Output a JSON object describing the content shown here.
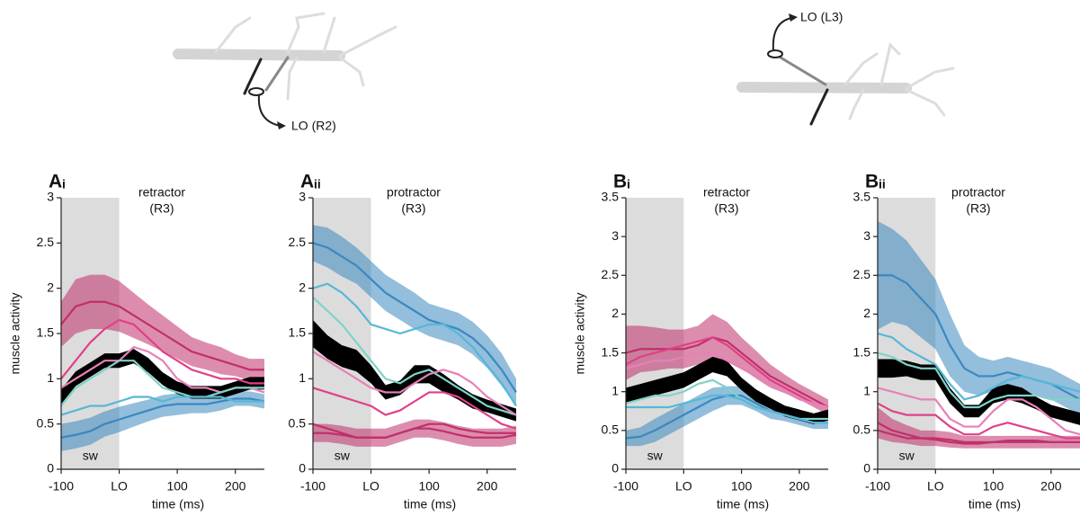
{
  "diagrams": [
    {
      "label": "LO (R2)"
    },
    {
      "label": "LO (L3)"
    }
  ],
  "chart_data": [
    {
      "type": "line",
      "panel": "A",
      "panel_sub": "i",
      "annotation": [
        "retractor",
        "(R3)"
      ],
      "shade_label": "sw",
      "ylabel": "muscle activity",
      "xlabel": "time (ms)",
      "x": [
        -100,
        -75,
        -50,
        -25,
        0,
        25,
        50,
        75,
        100,
        125,
        150,
        175,
        200,
        225,
        250
      ],
      "xlim": [
        -100,
        250
      ],
      "xticks": [
        -100,
        {
          "value": 0,
          "label": "LO"
        },
        100,
        200
      ],
      "shade": [
        -100,
        0
      ],
      "ylim": [
        0,
        3
      ],
      "yticks": [
        0,
        0.5,
        1,
        1.5,
        2,
        2.5,
        3
      ],
      "series": [
        {
          "color": "#c0306a",
          "values": [
            1.6,
            1.8,
            1.85,
            1.85,
            1.8,
            1.7,
            1.6,
            1.5,
            1.4,
            1.3,
            1.25,
            1.2,
            1.15,
            1.1,
            1.1
          ],
          "error": [
            0.25,
            0.3,
            0.3,
            0.3,
            0.28,
            0.25,
            0.22,
            0.2,
            0.18,
            0.16,
            0.15,
            0.15,
            0.12,
            0.12,
            0.12
          ]
        },
        {
          "color": "#3a88c0",
          "values": [
            0.35,
            0.38,
            0.42,
            0.5,
            0.55,
            0.6,
            0.65,
            0.7,
            0.72,
            0.72,
            0.72,
            0.75,
            0.78,
            0.78,
            0.75
          ],
          "error": [
            0.15,
            0.15,
            0.15,
            0.14,
            0.14,
            0.13,
            0.12,
            0.12,
            0.12,
            0.1,
            0.1,
            0.1,
            0.08,
            0.08,
            0.08
          ]
        },
        {
          "color": "#000000",
          "values": [
            0.8,
            1.0,
            1.1,
            1.2,
            1.2,
            1.25,
            1.15,
            1.0,
            0.9,
            0.85,
            0.85,
            0.85,
            0.9,
            0.95,
            0.95
          ],
          "error": [
            0.08,
            0.08,
            0.08,
            0.08,
            0.08,
            0.08,
            0.08,
            0.07,
            0.07,
            0.07,
            0.07,
            0.07,
            0.07,
            0.07,
            0.07
          ]
        },
        {
          "color": "#e0408a",
          "values": [
            1.0,
            1.2,
            1.4,
            1.55,
            1.65,
            1.6,
            1.45,
            1.3,
            1.2,
            1.1,
            1.05,
            1.0,
            1.0,
            0.95,
            0.95
          ]
        },
        {
          "color": "#e880b8",
          "values": [
            0.9,
            1.0,
            1.1,
            1.2,
            1.2,
            1.35,
            1.3,
            1.2,
            1.0,
            0.9,
            0.9,
            0.85,
            0.9,
            0.9,
            0.85
          ]
        },
        {
          "color": "#7fd3c8",
          "values": [
            0.7,
            0.9,
            1.0,
            1.1,
            1.2,
            1.2,
            1.05,
            0.9,
            0.85,
            0.8,
            0.8,
            0.85,
            0.9,
            0.9,
            0.9
          ]
        },
        {
          "color": "#55b8d8",
          "values": [
            0.6,
            0.65,
            0.7,
            0.7,
            0.75,
            0.8,
            0.8,
            0.75,
            0.8,
            0.8,
            0.8,
            0.8,
            0.75,
            0.75,
            0.75
          ]
        }
      ]
    },
    {
      "type": "line",
      "panel": "A",
      "panel_sub": "ii",
      "annotation": [
        "protractor",
        "(R3)"
      ],
      "shade_label": "sw",
      "xlabel": "time (ms)",
      "x": [
        -100,
        -75,
        -50,
        -25,
        0,
        25,
        50,
        75,
        100,
        125,
        150,
        175,
        200,
        225,
        250
      ],
      "xlim": [
        -100,
        250
      ],
      "xticks": [
        -100,
        {
          "value": 0,
          "label": "LO"
        },
        100,
        200
      ],
      "shade": [
        -100,
        0
      ],
      "ylim": [
        0,
        3
      ],
      "yticks": [
        0,
        0.5,
        1,
        1.5,
        2,
        2.5,
        3
      ],
      "series": [
        {
          "color": "#3a88c0",
          "values": [
            2.5,
            2.45,
            2.35,
            2.25,
            2.1,
            1.95,
            1.85,
            1.75,
            1.65,
            1.6,
            1.55,
            1.45,
            1.3,
            1.1,
            0.85
          ],
          "error": [
            0.2,
            0.22,
            0.22,
            0.2,
            0.2,
            0.2,
            0.2,
            0.2,
            0.18,
            0.18,
            0.18,
            0.18,
            0.18,
            0.18,
            0.15
          ]
        },
        {
          "color": "#c0306a",
          "values": [
            0.4,
            0.4,
            0.38,
            0.35,
            0.35,
            0.35,
            0.4,
            0.45,
            0.45,
            0.42,
            0.38,
            0.35,
            0.35,
            0.35,
            0.38
          ],
          "error": [
            0.1,
            0.1,
            0.1,
            0.1,
            0.1,
            0.1,
            0.1,
            0.1,
            0.1,
            0.1,
            0.1,
            0.1,
            0.1,
            0.1,
            0.1
          ]
        },
        {
          "color": "#000000",
          "values": [
            1.5,
            1.35,
            1.25,
            1.2,
            1.05,
            0.85,
            0.9,
            1.05,
            1.05,
            0.95,
            0.85,
            0.75,
            0.7,
            0.65,
            0.6
          ],
          "error": [
            0.15,
            0.13,
            0.12,
            0.12,
            0.1,
            0.08,
            0.08,
            0.1,
            0.1,
            0.1,
            0.08,
            0.08,
            0.07,
            0.07,
            0.07
          ]
        },
        {
          "color": "#55b8d8",
          "values": [
            2.0,
            2.05,
            1.95,
            1.8,
            1.6,
            1.55,
            1.5,
            1.55,
            1.6,
            1.6,
            1.5,
            1.35,
            1.15,
            0.95,
            0.7
          ]
        },
        {
          "color": "#7fd3c8",
          "values": [
            1.9,
            1.75,
            1.6,
            1.4,
            1.2,
            1.0,
            0.95,
            1.05,
            1.1,
            1.0,
            0.9,
            0.8,
            0.7,
            0.65,
            0.6
          ]
        },
        {
          "color": "#e880b8",
          "values": [
            1.3,
            1.2,
            1.1,
            1.0,
            0.9,
            0.85,
            0.85,
            0.95,
            1.05,
            1.1,
            1.05,
            0.95,
            0.8,
            0.7,
            0.6
          ]
        },
        {
          "color": "#e0408a",
          "values": [
            0.9,
            0.85,
            0.8,
            0.75,
            0.7,
            0.6,
            0.65,
            0.75,
            0.85,
            0.85,
            0.8,
            0.7,
            0.6,
            0.5,
            0.45
          ]
        },
        {
          "color": "#c0306a",
          "values": [
            0.5,
            0.45,
            0.4,
            0.35,
            0.35,
            0.35,
            0.4,
            0.45,
            0.5,
            0.5,
            0.45,
            0.42,
            0.4,
            0.4,
            0.4
          ]
        }
      ]
    },
    {
      "type": "line",
      "panel": "B",
      "panel_sub": "i",
      "annotation": [
        "retractor",
        "(R3)"
      ],
      "shade_label": "sw",
      "ylabel": "muscle activity",
      "xlabel": "time (ms)",
      "x": [
        -100,
        -75,
        -50,
        -25,
        0,
        25,
        50,
        75,
        100,
        125,
        150,
        175,
        200,
        225,
        250
      ],
      "xlim": [
        -100,
        250
      ],
      "xticks": [
        -100,
        {
          "value": 0,
          "label": "LO"
        },
        100,
        200
      ],
      "shade": [
        -100,
        0
      ],
      "ylim": [
        0,
        3.5
      ],
      "yticks": [
        0,
        0.5,
        1,
        1.5,
        2,
        2.5,
        3,
        3.5
      ],
      "series": [
        {
          "color": "#c0306a",
          "values": [
            1.5,
            1.55,
            1.55,
            1.55,
            1.55,
            1.6,
            1.7,
            1.65,
            1.5,
            1.35,
            1.2,
            1.1,
            1.0,
            0.9,
            0.8
          ],
          "error": [
            0.35,
            0.3,
            0.28,
            0.25,
            0.25,
            0.25,
            0.3,
            0.25,
            0.2,
            0.18,
            0.15,
            0.12,
            0.1,
            0.1,
            0.1
          ]
        },
        {
          "color": "#3a88c0",
          "values": [
            0.4,
            0.42,
            0.5,
            0.6,
            0.7,
            0.8,
            0.9,
            0.95,
            0.95,
            0.85,
            0.75,
            0.7,
            0.65,
            0.6,
            0.6
          ],
          "error": [
            0.1,
            0.12,
            0.15,
            0.15,
            0.15,
            0.15,
            0.15,
            0.12,
            0.12,
            0.1,
            0.1,
            0.08,
            0.08,
            0.08,
            0.08
          ]
        },
        {
          "color": "#000000",
          "values": [
            0.95,
            1.0,
            1.05,
            1.1,
            1.15,
            1.25,
            1.35,
            1.3,
            1.1,
            0.95,
            0.85,
            0.75,
            0.7,
            0.65,
            0.7
          ],
          "error": [
            0.1,
            0.1,
            0.1,
            0.1,
            0.1,
            0.1,
            0.1,
            0.1,
            0.08,
            0.08,
            0.07,
            0.07,
            0.07,
            0.07,
            0.07
          ]
        },
        {
          "color": "#e0408a",
          "values": [
            1.35,
            1.45,
            1.5,
            1.55,
            1.6,
            1.65,
            1.7,
            1.6,
            1.45,
            1.3,
            1.15,
            1.05,
            0.95,
            0.85,
            0.8
          ]
        },
        {
          "color": "#e880b8",
          "values": [
            1.3,
            1.35,
            1.4,
            1.4,
            1.45,
            1.5,
            1.5,
            1.4,
            1.3,
            1.2,
            1.1,
            1.0,
            0.9,
            0.85,
            0.8
          ]
        },
        {
          "color": "#7fd3c8",
          "values": [
            0.85,
            0.9,
            0.95,
            0.95,
            1.0,
            1.1,
            1.15,
            1.05,
            0.9,
            0.8,
            0.75,
            0.7,
            0.65,
            0.65,
            0.65
          ]
        },
        {
          "color": "#55b8d8",
          "values": [
            0.8,
            0.8,
            0.8,
            0.8,
            0.85,
            0.9,
            0.95,
            0.95,
            0.9,
            0.8,
            0.75,
            0.7,
            0.65,
            0.6,
            0.6
          ]
        }
      ]
    },
    {
      "type": "line",
      "panel": "B",
      "panel_sub": "ii",
      "annotation": [
        "protractor",
        "(R3)"
      ],
      "shade_label": "sw",
      "xlabel": "time (ms)",
      "x": [
        -100,
        -75,
        -50,
        -25,
        0,
        25,
        50,
        75,
        100,
        125,
        150,
        175,
        200,
        225,
        250
      ],
      "xlim": [
        -100,
        250
      ],
      "xticks": [
        -100,
        {
          "value": 0,
          "label": "LO"
        },
        100,
        200
      ],
      "shade": [
        -100,
        0
      ],
      "ylim": [
        0,
        3.5
      ],
      "yticks": [
        0,
        0.5,
        1,
        1.5,
        2,
        2.5,
        3,
        3.5
      ],
      "series": [
        {
          "color": "#3a88c0",
          "values": [
            2.5,
            2.5,
            2.4,
            2.2,
            2.0,
            1.6,
            1.3,
            1.2,
            1.2,
            1.25,
            1.2,
            1.15,
            1.1,
            1.0,
            0.9
          ],
          "error": [
            0.7,
            0.6,
            0.55,
            0.5,
            0.45,
            0.4,
            0.3,
            0.25,
            0.2,
            0.2,
            0.2,
            0.2,
            0.2,
            0.2,
            0.2
          ]
        },
        {
          "color": "#c0306a",
          "values": [
            0.6,
            0.5,
            0.45,
            0.4,
            0.4,
            0.38,
            0.35,
            0.35,
            0.35,
            0.35,
            0.35,
            0.35,
            0.35,
            0.35,
            0.35
          ],
          "error": [
            0.2,
            0.15,
            0.12,
            0.1,
            0.1,
            0.1,
            0.08,
            0.08,
            0.08,
            0.08,
            0.08,
            0.08,
            0.08,
            0.08,
            0.08
          ]
        },
        {
          "color": "#000000",
          "values": [
            1.3,
            1.3,
            1.3,
            1.25,
            1.25,
            0.95,
            0.75,
            0.75,
            0.95,
            1.0,
            0.95,
            0.85,
            0.75,
            0.7,
            0.65
          ],
          "error": [
            0.12,
            0.12,
            0.1,
            0.1,
            0.1,
            0.1,
            0.08,
            0.08,
            0.1,
            0.1,
            0.1,
            0.08,
            0.08,
            0.08,
            0.08
          ]
        },
        {
          "color": "#55b8d8",
          "values": [
            1.75,
            1.7,
            1.55,
            1.45,
            1.35,
            1.1,
            0.9,
            0.95,
            1.05,
            1.15,
            1.2,
            1.15,
            1.1,
            1.05,
            1.0
          ]
        },
        {
          "color": "#7fd3c8",
          "values": [
            1.5,
            1.45,
            1.35,
            1.3,
            1.3,
            1.0,
            0.8,
            0.8,
            0.9,
            0.95,
            0.95,
            0.95,
            0.9,
            0.9,
            0.9
          ]
        },
        {
          "color": "#e880b8",
          "values": [
            1.05,
            1.0,
            0.95,
            0.9,
            0.9,
            0.65,
            0.55,
            0.55,
            0.75,
            0.9,
            0.9,
            0.8,
            0.65,
            0.5,
            0.45
          ]
        },
        {
          "color": "#e0408a",
          "values": [
            0.85,
            0.75,
            0.7,
            0.7,
            0.7,
            0.55,
            0.45,
            0.45,
            0.55,
            0.6,
            0.55,
            0.5,
            0.45,
            0.4,
            0.4
          ]
        },
        {
          "color": "#c0306a",
          "values": [
            0.5,
            0.45,
            0.4,
            0.4,
            0.38,
            0.35,
            0.33,
            0.33,
            0.35,
            0.37,
            0.37,
            0.37,
            0.35,
            0.35,
            0.35
          ]
        }
      ]
    }
  ]
}
